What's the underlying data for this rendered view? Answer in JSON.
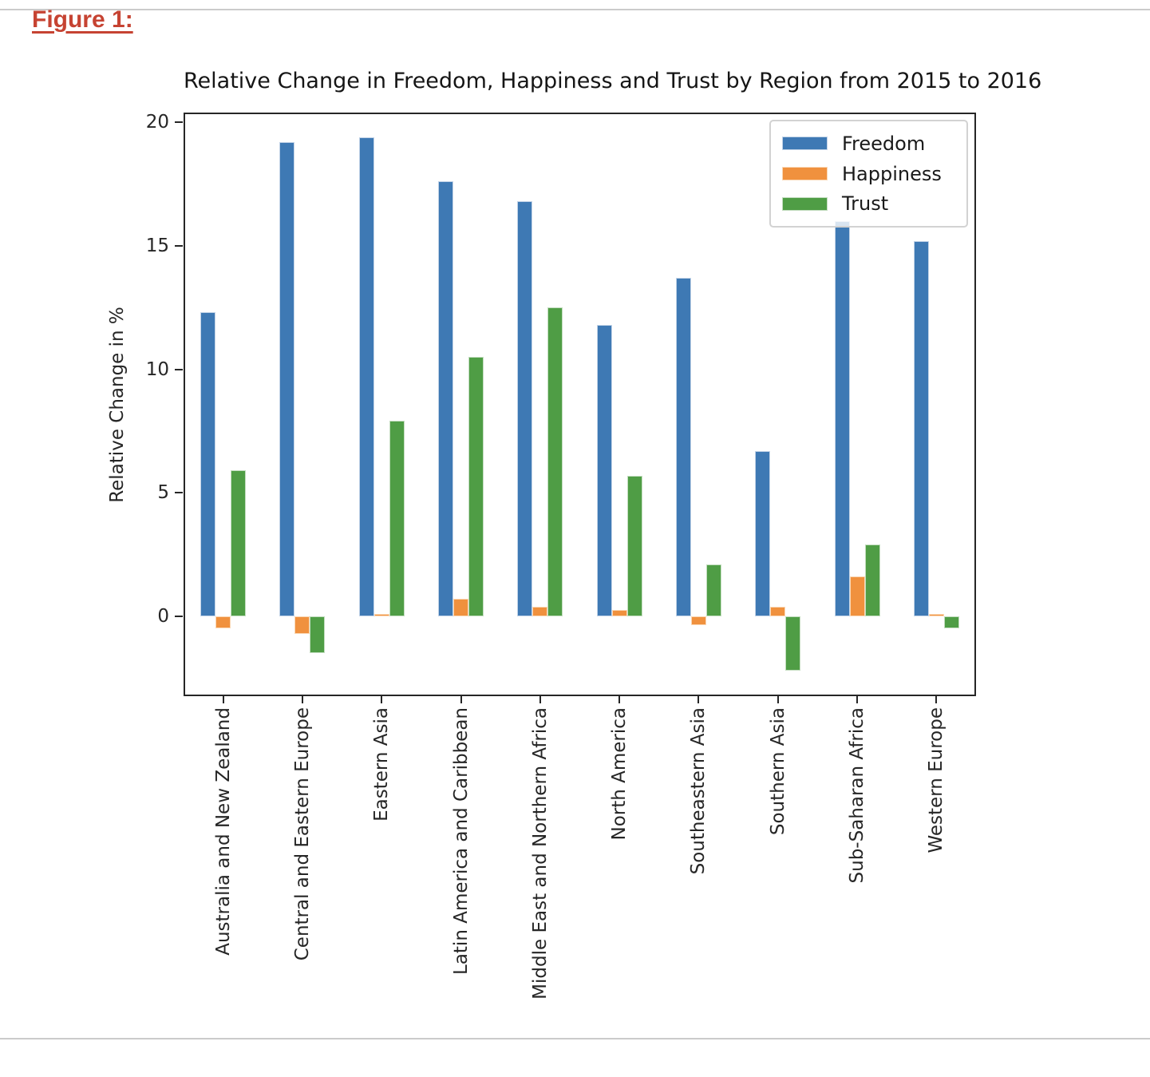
{
  "page": {
    "figure_label": "Figure 1:",
    "accent_color": "#c64332",
    "rule_color": "#cbcbcb"
  },
  "chart_data": {
    "type": "bar",
    "title": "Relative Change in Freedom, Happiness and Trust by Region from 2015 to 2016",
    "xlabel": "",
    "ylabel": "Relative Change in %",
    "categories": [
      "Australia and New Zealand",
      "Central and Eastern Europe",
      "Eastern Asia",
      "Latin America and Caribbean",
      "Middle East and Northern Africa",
      "North America",
      "Southeastern Asia",
      "Southern Asia",
      "Sub-Saharan Africa",
      "Western Europe"
    ],
    "series": [
      {
        "name": "Freedom",
        "color": "#3e79b4",
        "edge_color": "#c2d3e7",
        "values": [
          12.3,
          19.2,
          19.4,
          17.6,
          16.8,
          11.8,
          13.7,
          6.7,
          16.0,
          15.2
        ]
      },
      {
        "name": "Happiness",
        "color": "#f0913e",
        "edge_color": "#fad7b4",
        "values": [
          -0.5,
          -0.7,
          0.1,
          0.7,
          0.4,
          0.25,
          -0.35,
          0.4,
          1.6,
          0.1
        ]
      },
      {
        "name": "Trust",
        "color": "#4f9d45",
        "edge_color": "#c3ddbf",
        "values": [
          5.9,
          -1.5,
          7.9,
          10.5,
          12.5,
          5.7,
          2.1,
          -2.2,
          2.9,
          -0.5
        ]
      }
    ],
    "yticks": [
      0,
      5,
      10,
      15,
      20
    ],
    "ylim": [
      -3.3,
      20.4
    ],
    "grid": false,
    "legend_position": "upper right"
  }
}
